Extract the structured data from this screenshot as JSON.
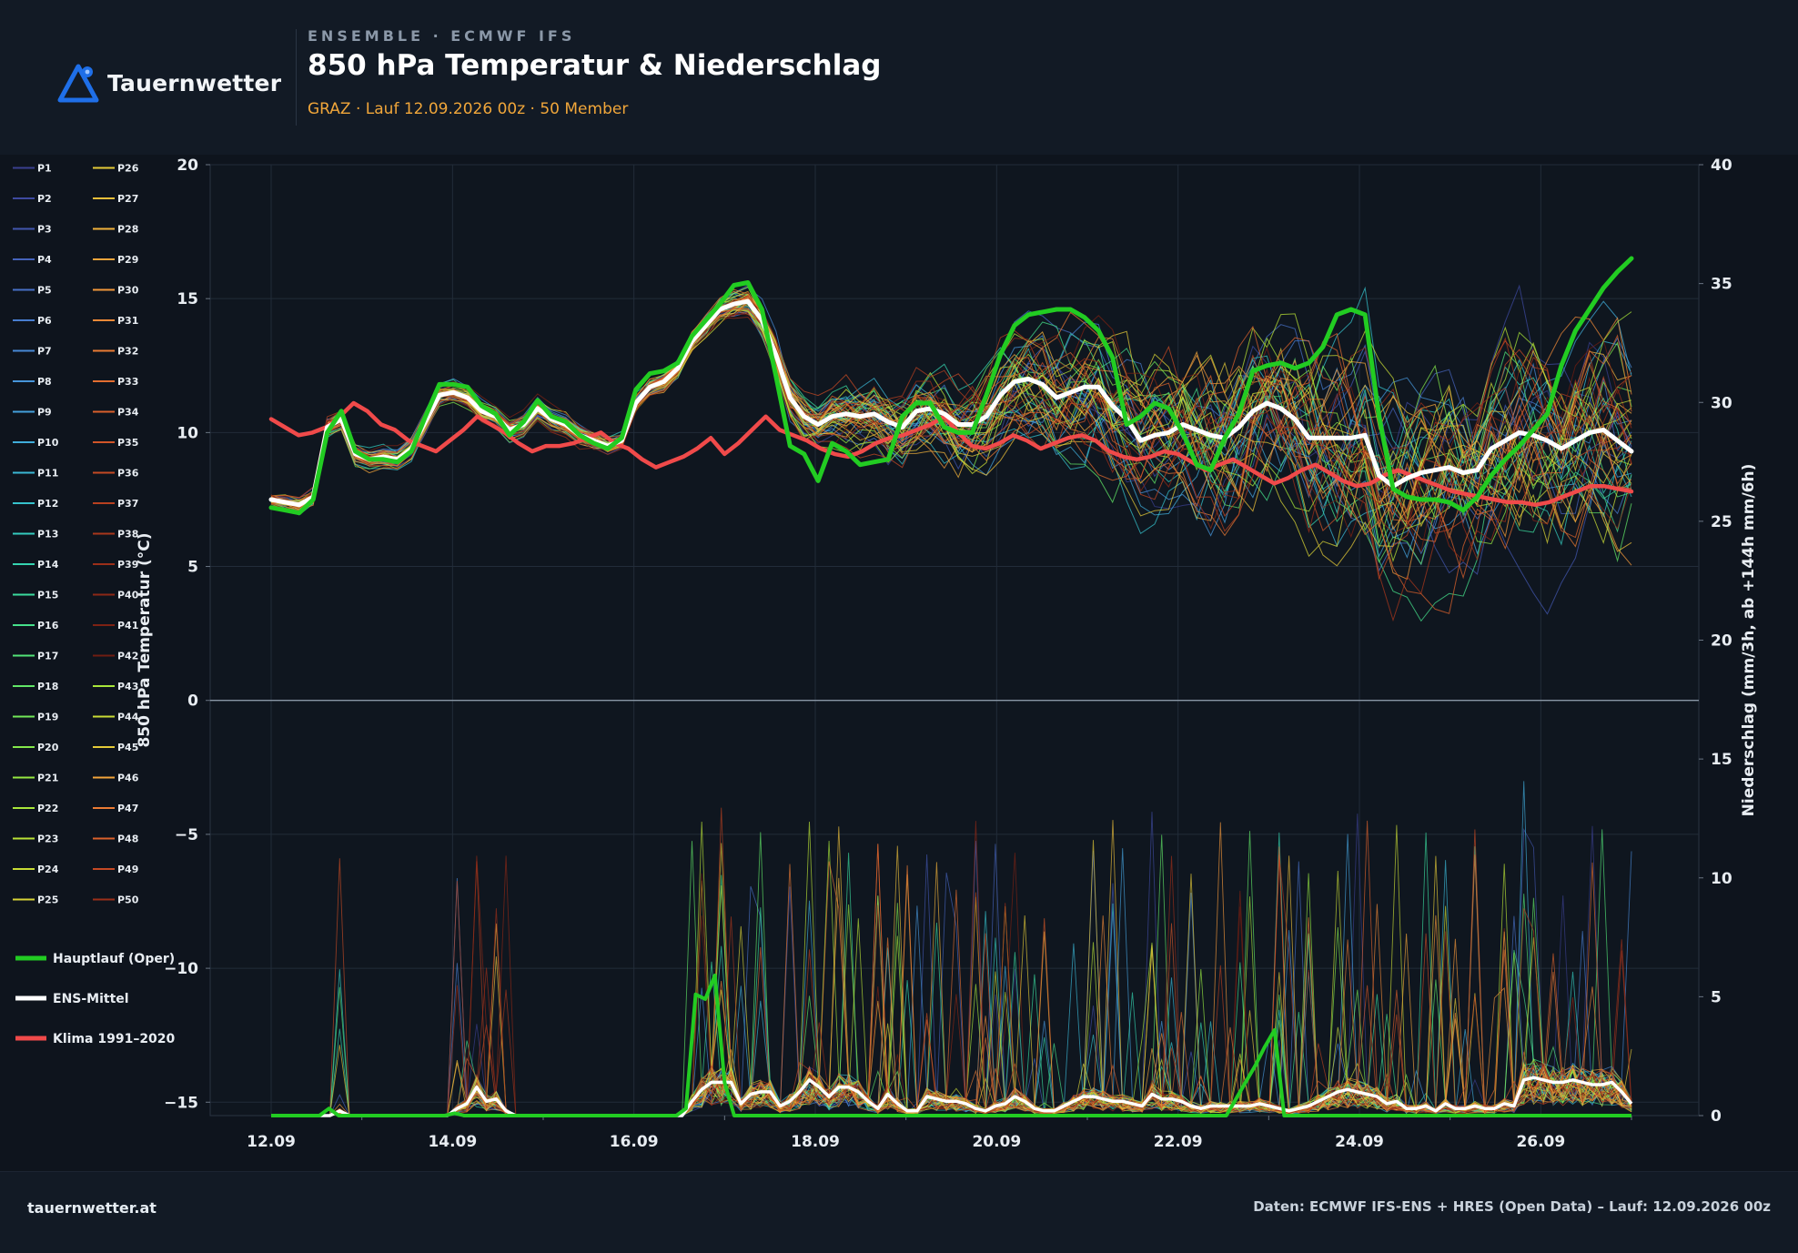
{
  "header": {
    "logo_text": "Tauernwetter",
    "kicker": "ENSEMBLE · ECMWF IFS",
    "title": "850 hPa Temperatur & Niederschlag",
    "subtitle": "GRAZ · Lauf 12.09.2026 00z · 50 Member"
  },
  "footer": {
    "left": "tauernwetter.at",
    "right": "Daten: ECMWF IFS-ENS + HRES (Open Data) – Lauf: 12.09.2026 00z"
  },
  "colors": {
    "background": "#0e141d",
    "header_bg": "#121a25",
    "accent": "#f0a63a",
    "logo_blue": "#1f6fe8",
    "oper": "#22cc22",
    "mean": "#ffffff",
    "clim": "#f04a4a"
  },
  "chart_data": {
    "type": "line",
    "x": [
      "12.09",
      "14.09",
      "16.09",
      "18.09",
      "20.09",
      "22.09",
      "24.09",
      "26.09"
    ],
    "xlim": [
      "12.09 00z",
      "27.09 00z"
    ],
    "x_step_hours": 6,
    "ylabel_left": "850 hPa Temperatur (°C)",
    "ylabel_right": "Niederschlag (mm/3h, ab +144h mm/6h)",
    "ylim_left": [
      -15.5,
      20
    ],
    "ylim_right": [
      0,
      40
    ],
    "yticks_left": [
      "−15",
      "−10",
      "−5",
      "0",
      "5",
      "10",
      "15",
      "20"
    ],
    "yticks_right": [
      "0",
      "5",
      "10",
      "15",
      "20",
      "25",
      "30",
      "35",
      "40"
    ],
    "grid": true,
    "legend_position": "left",
    "members": [
      "P1",
      "P2",
      "P3",
      "P4",
      "P5",
      "P6",
      "P7",
      "P8",
      "P9",
      "P10",
      "P11",
      "P12",
      "P13",
      "P14",
      "P15",
      "P16",
      "P17",
      "P18",
      "P19",
      "P20",
      "P21",
      "P22",
      "P23",
      "P24",
      "P25",
      "P26",
      "P27",
      "P28",
      "P29",
      "P30",
      "P31",
      "P32",
      "P33",
      "P34",
      "P35",
      "P36",
      "P37",
      "P38",
      "P39",
      "P40",
      "P41",
      "P42",
      "P43",
      "P44",
      "P45",
      "P46",
      "P47",
      "P48",
      "P49",
      "P50"
    ],
    "member_colors": [
      "#3a3f8f",
      "#3e4aa0",
      "#4256ae",
      "#4563bb",
      "#4770c6",
      "#487dd0",
      "#4889d6",
      "#4795da",
      "#44a1dc",
      "#40addb",
      "#3bb8d5",
      "#36c2cc",
      "#34ccbf",
      "#35d4b0",
      "#3bdb9e",
      "#45e08b",
      "#52e478",
      "#61e667",
      "#72e858",
      "#84e84b",
      "#96e841",
      "#a8e63a",
      "#b9e236",
      "#c9dc35",
      "#d8d436",
      "#e4ca38",
      "#ecbf3a",
      "#f1b23b",
      "#f3a53b",
      "#f2973a",
      "#ef8937",
      "#ea7b34",
      "#e36e30",
      "#db612c",
      "#d15528",
      "#c54a24",
      "#b84020",
      "#aa371c",
      "#9c2f19",
      "#8d2816",
      "#7e2213",
      "#701d11",
      "#a8e63a",
      "#c9dc35",
      "#e4ca38",
      "#f3a53b",
      "#ea7b34",
      "#db612c",
      "#c54a24",
      "#9c2f19"
    ],
    "series": [
      {
        "name": "Hauptlauf (Oper)",
        "color": "#22cc22",
        "temperature": [
          7.2,
          7.1,
          7.0,
          7.5,
          10.0,
          10.8,
          9.3,
          9.0,
          9.0,
          8.9,
          9.3,
          10.6,
          11.8,
          11.8,
          11.7,
          11.0,
          10.7,
          9.9,
          10.4,
          11.2,
          10.6,
          10.4,
          9.9,
          9.6,
          9.4,
          9.8,
          11.6,
          12.2,
          12.3,
          12.6,
          13.6,
          14.2,
          14.8,
          15.5,
          15.6,
          14.6,
          12.1,
          9.5,
          9.2,
          8.2,
          9.6,
          9.3,
          8.8,
          8.9,
          9.0,
          10.6,
          11.1,
          11.1,
          10.2,
          10.0,
          10.0,
          11.4,
          12.9,
          14.0,
          14.4,
          14.5,
          14.6,
          14.6,
          14.3,
          13.8,
          12.8,
          10.3,
          10.6,
          11.1,
          10.9,
          10.0,
          8.8,
          8.6,
          9.8,
          10.7,
          12.3,
          12.5,
          12.6,
          12.4,
          12.6,
          13.2,
          14.4,
          14.6,
          14.4,
          10.6,
          7.9,
          7.6,
          7.5,
          7.5,
          7.4,
          7.1,
          7.6,
          8.4,
          9.0,
          9.5,
          10.1,
          10.7,
          12.5,
          13.8,
          14.6,
          15.4,
          16.0,
          16.5
        ],
        "precipitation": [
          0,
          0,
          0,
          0,
          0,
          0,
          0.3,
          0,
          0,
          0,
          0,
          0,
          0,
          0,
          0,
          0,
          0,
          0,
          0,
          0.1,
          0,
          0,
          0,
          0,
          0,
          0,
          0,
          0,
          0,
          0,
          0,
          0,
          0,
          0,
          0,
          0,
          0,
          0,
          0,
          0,
          0,
          0,
          0,
          0.3,
          5.1,
          4.9,
          5.9,
          1.4,
          0,
          0,
          0,
          0,
          0,
          0,
          0,
          0,
          0,
          0,
          0,
          0,
          0,
          0,
          0,
          0,
          0,
          0,
          0,
          0,
          0,
          0,
          0,
          0,
          0,
          0,
          0,
          0,
          0,
          0,
          0,
          0,
          0,
          0,
          0,
          0,
          0,
          0,
          0,
          0,
          0,
          0,
          0,
          0,
          0,
          0,
          0,
          0,
          0,
          0,
          0,
          0,
          0.7,
          1.4,
          2.1,
          2.9,
          3.6,
          0,
          0,
          0,
          0,
          0,
          0,
          0,
          0,
          0,
          0,
          0,
          0,
          0,
          0,
          0,
          0,
          0,
          0,
          0,
          0,
          0,
          0,
          0,
          0,
          0,
          0,
          0,
          0,
          0,
          0,
          0,
          0,
          0,
          0,
          0,
          0,
          0
        ]
      },
      {
        "name": "ENS-Mittel",
        "color": "#ffffff",
        "temperature": [
          7.5,
          7.4,
          7.3,
          7.6,
          10.2,
          10.5,
          9.2,
          9.0,
          9.1,
          9.0,
          9.4,
          10.4,
          11.4,
          11.5,
          11.3,
          10.8,
          10.6,
          10.1,
          10.3,
          10.9,
          10.5,
          10.3,
          9.9,
          9.7,
          9.5,
          9.7,
          11.1,
          11.7,
          11.9,
          12.4,
          13.4,
          14.0,
          14.6,
          14.8,
          14.9,
          14.2,
          12.9,
          11.3,
          10.6,
          10.3,
          10.6,
          10.7,
          10.6,
          10.7,
          10.4,
          10.2,
          10.8,
          10.9,
          10.7,
          10.3,
          10.3,
          10.6,
          11.4,
          11.9,
          12.0,
          11.8,
          11.3,
          11.5,
          11.7,
          11.7,
          11.0,
          10.5,
          9.7,
          9.9,
          10.0,
          10.3,
          10.1,
          9.9,
          9.8,
          10.2,
          10.8,
          11.1,
          10.9,
          10.5,
          9.8,
          9.8,
          9.8,
          9.8,
          9.9,
          8.4,
          8.0,
          8.3,
          8.5,
          8.6,
          8.7,
          8.5,
          8.6,
          9.4,
          9.7,
          10.0,
          9.9,
          9.7,
          9.4,
          9.7,
          10.0,
          10.1,
          9.7,
          9.3
        ],
        "precipitation": [
          0,
          0,
          0,
          0,
          0,
          0,
          0,
          0.2,
          0,
          0,
          0,
          0,
          0,
          0,
          0,
          0,
          0,
          0,
          0,
          0.3,
          0.5,
          1.2,
          0.6,
          0.7,
          0.2,
          0,
          0,
          0,
          0,
          0,
          0,
          0,
          0,
          0,
          0,
          0,
          0,
          0,
          0,
          0,
          0,
          0,
          0,
          0.6,
          1.1,
          1.4,
          1.4,
          1.4,
          0.5,
          0.9,
          1.0,
          1.0,
          0.4,
          0.6,
          1.0,
          1.5,
          1.2,
          0.8,
          1.2,
          1.2,
          1.0,
          0.6,
          0.3,
          0.9,
          0.5,
          0.2,
          0.2,
          0.8,
          0.7,
          0.6,
          0.6,
          0.5,
          0.3,
          0.2,
          0.4,
          0.5,
          0.8,
          0.6,
          0.3,
          0.2,
          0.2,
          0.4,
          0.6,
          0.8,
          0.8,
          0.7,
          0.6,
          0.6,
          0.5,
          0.4,
          0.9,
          0.7,
          0.7,
          0.6,
          0.4,
          0.3,
          0.4,
          0.4,
          0.4,
          0.4,
          0.4,
          0.5,
          0.4,
          0.3,
          0.2,
          0.3,
          0.4,
          0.6,
          0.8,
          1.0,
          1.1,
          1.0,
          0.9,
          0.8,
          0.5,
          0.6,
          0.3,
          0.3,
          0.4,
          0.2,
          0.5,
          0.3,
          0.3,
          0.4,
          0.3,
          0.3,
          0.5,
          0.4,
          1.5,
          1.6,
          1.5,
          1.4,
          1.4,
          1.5,
          1.4,
          1.3,
          1.3,
          1.4,
          1.0,
          0.5
        ]
      },
      {
        "name": "Klima 1991–2020",
        "color": "#f04a4a",
        "temperature": [
          10.5,
          10.2,
          9.9,
          10.0,
          10.2,
          10.6,
          11.1,
          10.8,
          10.3,
          10.1,
          9.7,
          9.5,
          9.3,
          9.7,
          10.1,
          10.6,
          10.3,
          10.0,
          9.6,
          9.3,
          9.5,
          9.5,
          9.6,
          9.8,
          10.0,
          9.6,
          9.4,
          9.0,
          8.7,
          8.9,
          9.1,
          9.4,
          9.8,
          9.2,
          9.6,
          10.1,
          10.6,
          10.1,
          9.9,
          9.7,
          9.4,
          9.2,
          9.1,
          9.3,
          9.6,
          9.8,
          9.9,
          10.1,
          10.3,
          10.6,
          10.0,
          9.5,
          9.4,
          9.6,
          9.9,
          9.7,
          9.4,
          9.6,
          9.8,
          9.9,
          9.7,
          9.3,
          9.1,
          9.0,
          9.1,
          9.3,
          9.2,
          8.9,
          8.6,
          8.8,
          9.0,
          8.7,
          8.4,
          8.1,
          8.3,
          8.6,
          8.8,
          8.5,
          8.2,
          8.0,
          8.1,
          8.4,
          8.6,
          8.4,
          8.2,
          8.0,
          7.8,
          7.7,
          7.6,
          7.5,
          7.4,
          7.4,
          7.3,
          7.4,
          7.6,
          7.8,
          8.0,
          8.0,
          7.9,
          7.8
        ]
      }
    ]
  }
}
